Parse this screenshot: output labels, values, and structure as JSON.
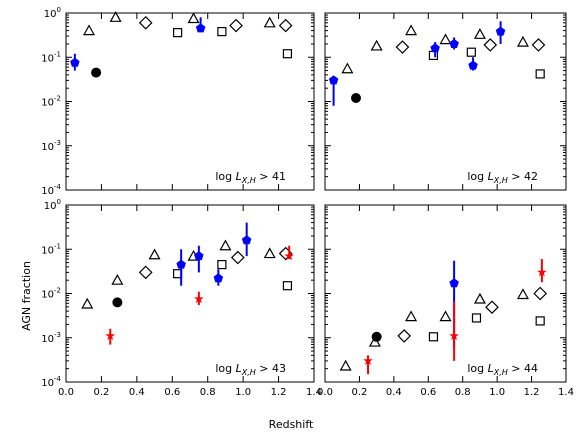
{
  "figure": {
    "ylabel": "AGN fraction",
    "xlabel": "Redshift"
  },
  "chart_data": [
    {
      "type": "scatter",
      "panel_label": "log L_{X,H} > 41",
      "label_parts": [
        "log ",
        "L",
        "X,H",
        " > 41"
      ],
      "xlim": [
        0.0,
        1.4
      ],
      "ylim": [
        0.0001,
        1
      ],
      "yscale": "log",
      "series": [
        {
          "marker": "triangle",
          "points": [
            [
              0.13,
              0.4
            ],
            [
              0.28,
              0.8
            ],
            [
              0.72,
              0.75
            ],
            [
              1.15,
              0.6
            ]
          ]
        },
        {
          "marker": "diamond",
          "points": [
            [
              0.45,
              0.6
            ],
            [
              0.96,
              0.52
            ],
            [
              1.24,
              0.52
            ]
          ]
        },
        {
          "marker": "square",
          "points": [
            [
              0.63,
              0.36
            ],
            [
              0.88,
              0.38
            ],
            [
              1.25,
              0.12
            ]
          ]
        },
        {
          "marker": "circle",
          "points": [
            [
              0.17,
              0.045
            ]
          ]
        },
        {
          "marker": "pentagon",
          "color": "#0000ff",
          "points": [
            {
              "x": 0.05,
              "y": 0.075,
              "lo": 0.05,
              "hi": 0.12
            },
            {
              "x": 0.76,
              "y": 0.45,
              "lo": 0.45,
              "hi": 0.8
            }
          ]
        }
      ]
    },
    {
      "type": "scatter",
      "panel_label": "log L_{X,H} > 42",
      "label_parts": [
        "log ",
        "L",
        "X,H",
        " > 42"
      ],
      "xlim": [
        0.0,
        1.4
      ],
      "ylim": [
        0.0001,
        1
      ],
      "yscale": "log",
      "series": [
        {
          "marker": "triangle",
          "points": [
            [
              0.13,
              0.055
            ],
            [
              0.3,
              0.18
            ],
            [
              0.5,
              0.4
            ],
            [
              0.7,
              0.25
            ],
            [
              0.9,
              0.33
            ],
            [
              1.15,
              0.22
            ]
          ]
        },
        {
          "marker": "diamond",
          "points": [
            [
              0.45,
              0.17
            ],
            [
              0.96,
              0.19
            ],
            [
              1.24,
              0.19
            ]
          ]
        },
        {
          "marker": "square",
          "points": [
            [
              0.63,
              0.11
            ],
            [
              0.85,
              0.13
            ],
            [
              1.25,
              0.042
            ]
          ]
        },
        {
          "marker": "circle",
          "points": [
            [
              0.18,
              0.012
            ]
          ]
        },
        {
          "marker": "pentagon",
          "color": "#0000ff",
          "points": [
            {
              "x": 0.05,
              "y": 0.03,
              "lo": 0.008,
              "hi": 0.03
            },
            {
              "x": 0.64,
              "y": 0.16,
              "lo": 0.1,
              "hi": 0.22
            },
            {
              "x": 0.75,
              "y": 0.2,
              "lo": 0.15,
              "hi": 0.28
            },
            {
              "x": 0.86,
              "y": 0.065,
              "lo": 0.05,
              "hi": 0.1
            },
            {
              "x": 1.02,
              "y": 0.38,
              "lo": 0.2,
              "hi": 0.65
            }
          ]
        }
      ]
    },
    {
      "type": "scatter",
      "panel_label": "log L_{X,H} > 43",
      "label_parts": [
        "log ",
        "L",
        "X,H",
        " > 43"
      ],
      "xlim": [
        0.0,
        1.4
      ],
      "ylim": [
        0.0001,
        1
      ],
      "yscale": "log",
      "series": [
        {
          "marker": "triangle",
          "points": [
            [
              0.12,
              0.0058
            ],
            [
              0.29,
              0.02
            ],
            [
              0.5,
              0.075
            ],
            [
              0.72,
              0.07
            ],
            [
              0.9,
              0.12
            ],
            [
              1.15,
              0.08
            ]
          ]
        },
        {
          "marker": "diamond",
          "points": [
            [
              0.45,
              0.03
            ],
            [
              0.97,
              0.065
            ],
            [
              1.24,
              0.08
            ]
          ]
        },
        {
          "marker": "square",
          "points": [
            [
              0.63,
              0.028
            ],
            [
              0.88,
              0.045
            ],
            [
              1.25,
              0.015
            ]
          ]
        },
        {
          "marker": "circle",
          "points": [
            [
              0.29,
              0.0063
            ]
          ]
        },
        {
          "marker": "pentagon",
          "color": "#0000ff",
          "points": [
            {
              "x": 0.65,
              "y": 0.045,
              "lo": 0.015,
              "hi": 0.1
            },
            {
              "x": 0.75,
              "y": 0.07,
              "lo": 0.03,
              "hi": 0.12
            },
            {
              "x": 0.86,
              "y": 0.022,
              "lo": 0.015,
              "hi": 0.035
            },
            {
              "x": 1.02,
              "y": 0.16,
              "lo": 0.07,
              "hi": 0.4
            }
          ]
        },
        {
          "marker": "star",
          "color": "#ff0000",
          "points": [
            {
              "x": 0.25,
              "y": 0.0011,
              "lo": 0.0007,
              "hi": 0.0016
            },
            {
              "x": 0.75,
              "y": 0.0075,
              "lo": 0.0055,
              "hi": 0.011
            },
            {
              "x": 1.26,
              "y": 0.07,
              "lo": 0.06,
              "hi": 0.12
            }
          ]
        }
      ]
    },
    {
      "type": "scatter",
      "panel_label": "log L_{X,H} > 44",
      "label_parts": [
        "log ",
        "L",
        "X,H",
        " > 44"
      ],
      "xlim": [
        0.0,
        1.4
      ],
      "ylim": [
        0.0001,
        1
      ],
      "yscale": "log",
      "series": [
        {
          "marker": "triangle",
          "points": [
            [
              0.12,
              0.00023
            ],
            [
              0.29,
              0.0008
            ],
            [
              0.5,
              0.003
            ],
            [
              0.7,
              0.003
            ],
            [
              0.9,
              0.0075
            ],
            [
              1.15,
              0.0095
            ]
          ]
        },
        {
          "marker": "diamond",
          "points": [
            [
              0.46,
              0.0011
            ],
            [
              0.97,
              0.0049
            ],
            [
              1.25,
              0.01
            ]
          ]
        },
        {
          "marker": "square",
          "points": [
            [
              0.63,
              0.00105
            ],
            [
              0.88,
              0.0028
            ],
            [
              1.25,
              0.0024
            ]
          ]
        },
        {
          "marker": "circle",
          "points": [
            [
              0.3,
              0.00105
            ]
          ]
        },
        {
          "marker": "pentagon",
          "color": "#0000ff",
          "points": [
            {
              "x": 0.75,
              "y": 0.017,
              "lo": 0.0006,
              "hi": 0.055
            }
          ]
        },
        {
          "marker": "star",
          "color": "#ff0000",
          "points": [
            {
              "x": 0.25,
              "y": 0.0003,
              "lo": 0.00015,
              "hi": 0.0004
            },
            {
              "x": 0.75,
              "y": 0.0011,
              "lo": 0.0003,
              "hi": 0.0065
            },
            {
              "x": 1.26,
              "y": 0.03,
              "lo": 0.018,
              "hi": 0.06
            }
          ]
        }
      ]
    }
  ],
  "axes": {
    "y_ticks": [
      {
        "value": 1,
        "base": "10",
        "exp": "0"
      },
      {
        "value": 0.1,
        "base": "10",
        "exp": "-1"
      },
      {
        "value": 0.01,
        "base": "10",
        "exp": "-2"
      },
      {
        "value": 0.001,
        "base": "10",
        "exp": "-3"
      },
      {
        "value": 0.0001,
        "base": "10",
        "exp": "-4"
      }
    ],
    "x_ticks": [
      {
        "value": 0.0,
        "label": "0.0"
      },
      {
        "value": 0.2,
        "label": "0.2"
      },
      {
        "value": 0.4,
        "label": "0.4"
      },
      {
        "value": 0.6,
        "label": "0.6"
      },
      {
        "value": 0.8,
        "label": "0.8"
      },
      {
        "value": 1.0,
        "label": "1.0"
      },
      {
        "value": 1.2,
        "label": "1.2"
      },
      {
        "value": 1.4,
        "label": "1.4"
      }
    ]
  }
}
